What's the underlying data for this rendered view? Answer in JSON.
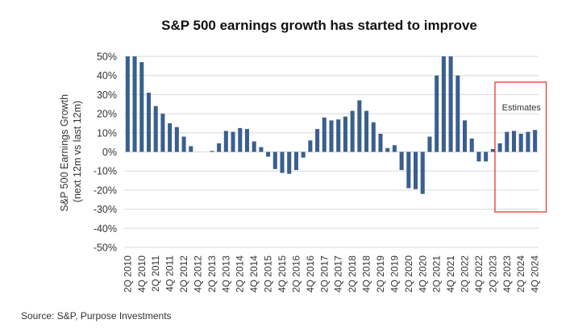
{
  "chart_data": {
    "type": "bar",
    "title": "S&P 500 earnings growth has started to improve",
    "ylabel_line1": "S&P 500 Earnings Growth",
    "ylabel_line2": "(next 12m vs last 12m)",
    "xlabel": "",
    "ylim": [
      -50,
      50
    ],
    "y_ticks": [
      "50%",
      "40%",
      "30%",
      "20%",
      "10%",
      "0%",
      "-10%",
      "-20%",
      "-30%",
      "-40%",
      "-50%"
    ],
    "y_tick_values": [
      50,
      40,
      30,
      20,
      10,
      0,
      -10,
      -20,
      -30,
      -40,
      -50
    ],
    "grid": true,
    "bar_color": "#3A5F8F",
    "categories": [
      "2Q 2010",
      "3Q 2010",
      "4Q 2010",
      "1Q 2011",
      "2Q 2011",
      "3Q 2011",
      "4Q 2011",
      "1Q 2012",
      "2Q 2012",
      "3Q 2012",
      "4Q 2012",
      "1Q 2013",
      "2Q 2013",
      "3Q 2013",
      "4Q 2013",
      "1Q 2014",
      "2Q 2014",
      "3Q 2014",
      "4Q 2014",
      "1Q 2015",
      "2Q 2015",
      "3Q 2015",
      "4Q 2015",
      "1Q 2016",
      "2Q 2016",
      "3Q 2016",
      "4Q 2016",
      "1Q 2017",
      "2Q 2017",
      "3Q 2017",
      "4Q 2017",
      "1Q 2018",
      "2Q 2018",
      "3Q 2018",
      "4Q 2018",
      "1Q 2019",
      "2Q 2019",
      "3Q 2019",
      "4Q 2019",
      "1Q 2020",
      "2Q 2020",
      "3Q 2020",
      "4Q 2020",
      "1Q 2021",
      "2Q 2021",
      "3Q 2021",
      "4Q 2021",
      "1Q 2022",
      "2Q 2022",
      "3Q 2022",
      "4Q 2022",
      "1Q 2023",
      "2Q 2023",
      "3Q 2023",
      "4Q 2023",
      "1Q 2024",
      "2Q 2024",
      "3Q 2024",
      "4Q 2024"
    ],
    "x_tick_labels": [
      "2Q 2010",
      "4Q 2010",
      "2Q 2011",
      "4Q 2011",
      "2Q 2012",
      "4Q 2012",
      "2Q 2013",
      "4Q 2013",
      "2Q 2014",
      "4Q 2014",
      "2Q 2015",
      "4Q 2015",
      "2Q 2016",
      "4Q 2016",
      "2Q 2017",
      "4Q 2017",
      "2Q 2018",
      "4Q 2018",
      "2Q 2019",
      "4Q 2019",
      "2Q 2020",
      "4Q 2020",
      "2Q 2021",
      "4Q 2021",
      "2Q 2022",
      "4Q 2022",
      "2Q 2023",
      "4Q 2023",
      "2Q 2024",
      "4Q 2024"
    ],
    "values": [
      50,
      50,
      47,
      31,
      24,
      20,
      15,
      13,
      8,
      3,
      0,
      0,
      0.5,
      4.5,
      11,
      10.5,
      12.5,
      12,
      5.5,
      2.5,
      -2.5,
      -9,
      -11,
      -11.5,
      -9.5,
      -3,
      6,
      12,
      18,
      16.5,
      17,
      18.5,
      21.5,
      27,
      21.5,
      15.5,
      9.5,
      2,
      3.5,
      -9.5,
      -19,
      -19.5,
      -22,
      8,
      40,
      50,
      50,
      40,
      16.5,
      7,
      -5,
      -5,
      1.5,
      4.5,
      10.5,
      11,
      9.5,
      10.5,
      11.5
    ],
    "annotations": [
      {
        "text": "Estimates",
        "from_category": "3Q 2023",
        "to_category": "4Q 2024",
        "style": "red outlined box"
      }
    ],
    "annotation_color": "#E03A34",
    "source": "Source: S&P, Purpose Investments"
  }
}
